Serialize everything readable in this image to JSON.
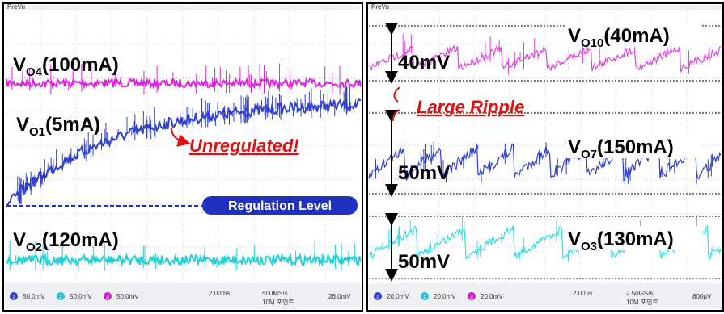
{
  "left": {
    "header": "PreVu",
    "labels": [
      {
        "main": "V",
        "sub": "O4",
        "rest": "(100mA)"
      },
      {
        "main": "V",
        "sub": "O1",
        "rest": "(5mA)"
      },
      {
        "main": "V",
        "sub": "O2",
        "rest": "(120mA)"
      }
    ],
    "annotation": "Unregulated!",
    "regulation": "Regulation Level",
    "channels": [
      "1",
      "2",
      "3"
    ],
    "footer": [
      "50.0mV",
      "50.0mV",
      "50.0mV",
      "2.00ms",
      "500MS/s",
      "10M 포인트",
      "26.0mV"
    ]
  },
  "right": {
    "header": "PreVu",
    "labels": [
      {
        "main": "V",
        "sub": "O10",
        "rest": "(40mA)"
      },
      {
        "main": "V",
        "sub": "O7",
        "rest": "(150mA)"
      },
      {
        "main": "V",
        "sub": "O3",
        "rest": "(130mA)"
      }
    ],
    "annotation": "Large Ripple",
    "spans": [
      "40mV",
      "50mV",
      "50mV"
    ],
    "channels": [
      "1",
      "2",
      "3"
    ],
    "footer": [
      "20.0mV",
      "20.0mV",
      "20.0mV",
      "2.00µs",
      "2.50GS/s",
      "10M 포인트",
      "800µV"
    ]
  }
}
